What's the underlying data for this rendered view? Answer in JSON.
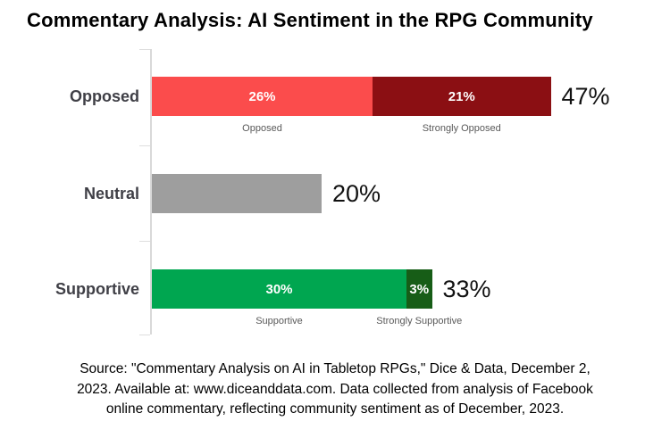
{
  "title": "Commentary Analysis: AI Sentiment in the RPG Community",
  "source_note": {
    "line1": "Source: \"Commentary Analysis on AI in Tabletop RPGs,\" Dice & Data, December 2,",
    "line2": "2023. Available at: www.diceanddata.com. Data collected from analysis of Facebook",
    "line3": "online commentary, reflecting community sentiment as of December, 2023."
  },
  "colors": {
    "opposed": "#FB4C4C",
    "strongly_opposed": "#8B0F13",
    "neutral": "#9E9E9E",
    "supportive": "#00A650",
    "strongly_supportive": "#175D17",
    "axis": "#D9D9D9",
    "category_label_text": "#3F3F46",
    "sublabel_text": "#595959",
    "bar_value_text": "#FFFFFF"
  },
  "chart_data": {
    "type": "bar",
    "orientation": "horizontal",
    "stacked": true,
    "title": "Commentary Analysis: AI Sentiment in the RPG Community",
    "xlabel": "",
    "ylabel": "",
    "xlim": [
      0,
      100
    ],
    "value_unit": "%",
    "grid": false,
    "legend": "inline-sublabels",
    "categories": [
      "Opposed",
      "Neutral",
      "Supportive"
    ],
    "rows": [
      {
        "category": "Opposed",
        "total": 47,
        "total_label": "47%",
        "segments": [
          {
            "name": "Opposed",
            "value": 26,
            "label": "26%",
            "sublabel": "Opposed",
            "color": "#FB4C4C"
          },
          {
            "name": "Strongly Opposed",
            "value": 21,
            "label": "21%",
            "sublabel": "Strongly Opposed",
            "color": "#8B0F13"
          }
        ]
      },
      {
        "category": "Neutral",
        "total": 20,
        "total_label": "20%",
        "segments": [
          {
            "name": "Neutral",
            "value": 20,
            "label": "",
            "sublabel": "",
            "color": "#9E9E9E"
          }
        ]
      },
      {
        "category": "Supportive",
        "total": 33,
        "total_label": "33%",
        "segments": [
          {
            "name": "Supportive",
            "value": 30,
            "label": "30%",
            "sublabel": "Supportive",
            "color": "#00A650"
          },
          {
            "name": "Strongly Supportive",
            "value": 3,
            "label": "3%",
            "sublabel": "Strongly Supportive",
            "color": "#175D17"
          }
        ]
      }
    ]
  }
}
